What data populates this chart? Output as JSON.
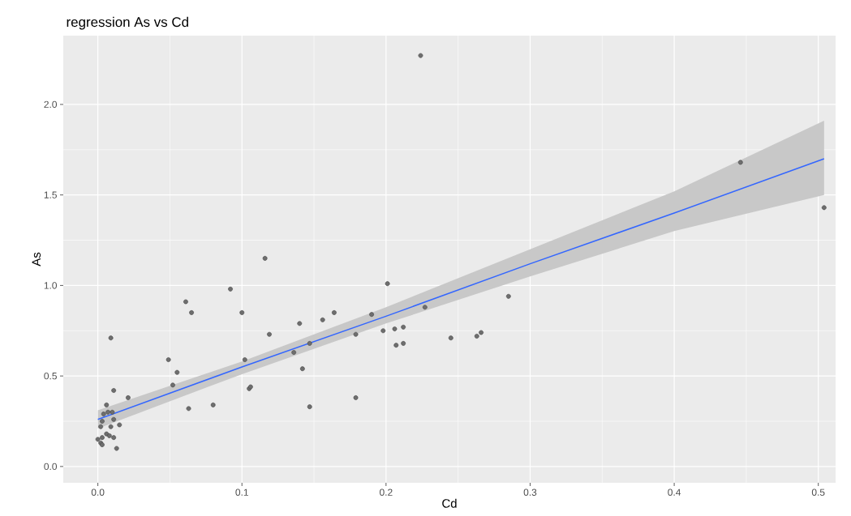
{
  "chart_data": {
    "type": "scatter",
    "title": "regression As vs Cd",
    "xlabel": "Cd",
    "ylabel": "As",
    "xlim": [
      -0.024,
      0.512
    ],
    "ylim": [
      -0.09,
      2.38
    ],
    "xticks": [
      {
        "value": 0,
        "label": "0.0"
      },
      {
        "value": 0.1,
        "label": "0.1"
      },
      {
        "value": 0.2,
        "label": "0.2"
      },
      {
        "value": 0.3,
        "label": "0.3"
      },
      {
        "value": 0.4,
        "label": "0.4"
      },
      {
        "value": 0.5,
        "label": "0.5"
      }
    ],
    "yticks": [
      {
        "value": 0,
        "label": "0.0"
      },
      {
        "value": 0.5,
        "label": "0.5"
      },
      {
        "value": 1.0,
        "label": "1.0"
      },
      {
        "value": 1.5,
        "label": "1.5"
      },
      {
        "value": 2.0,
        "label": "2.0"
      }
    ],
    "grid": true,
    "series": [
      {
        "type": "line",
        "color": "#3366ff",
        "line_style": "solid",
        "marker": "none",
        "x": [
          0,
          0.1,
          0.2,
          0.3,
          0.4,
          0.504
        ],
        "values": [
          0.26,
          0.55,
          0.83,
          1.12,
          1.4,
          1.7
        ],
        "lower": [
          0.21,
          0.51,
          0.79,
          1.05,
          1.3,
          1.5
        ],
        "upper": [
          0.31,
          0.58,
          0.88,
          1.2,
          1.52,
          1.91
        ]
      },
      {
        "color": "#6e6e6e",
        "marker": "circle",
        "x": [
          0.009,
          0.011,
          0.006,
          0.021,
          0.049,
          0.055,
          0.052,
          0.063,
          0.08,
          0.061,
          0.065,
          0.092,
          0.1,
          0.116,
          0.102,
          0.105,
          0.106,
          0.119,
          0.136,
          0.14,
          0.142,
          0.147,
          0.147,
          0.156,
          0.164,
          0.179,
          0.179,
          0.19,
          0.198,
          0.201,
          0.206,
          0.207,
          0.212,
          0.212,
          0.224,
          0.227,
          0.245,
          0.263,
          0.266,
          0.285,
          0.446,
          0.504,
          0.002,
          0.003,
          0.004,
          0.007,
          0.01,
          0.011,
          0.015,
          0.003,
          0.006,
          0.008,
          0.011,
          0.002,
          0.003,
          0.013,
          0.0,
          0.009
        ],
        "values": [
          0.71,
          0.42,
          0.34,
          0.38,
          0.59,
          0.52,
          0.45,
          0.32,
          0.34,
          0.91,
          0.85,
          0.98,
          0.85,
          1.15,
          0.59,
          0.43,
          0.44,
          0.73,
          0.63,
          0.79,
          0.54,
          0.68,
          0.33,
          0.81,
          0.85,
          0.73,
          0.38,
          0.84,
          0.75,
          1.01,
          0.76,
          0.67,
          0.77,
          0.68,
          2.27,
          0.88,
          0.71,
          0.72,
          0.74,
          0.94,
          1.68,
          1.43,
          0.22,
          0.25,
          0.29,
          0.3,
          0.3,
          0.26,
          0.23,
          0.16,
          0.18,
          0.17,
          0.16,
          0.13,
          0.12,
          0.1,
          0.15,
          0.22
        ]
      }
    ]
  }
}
